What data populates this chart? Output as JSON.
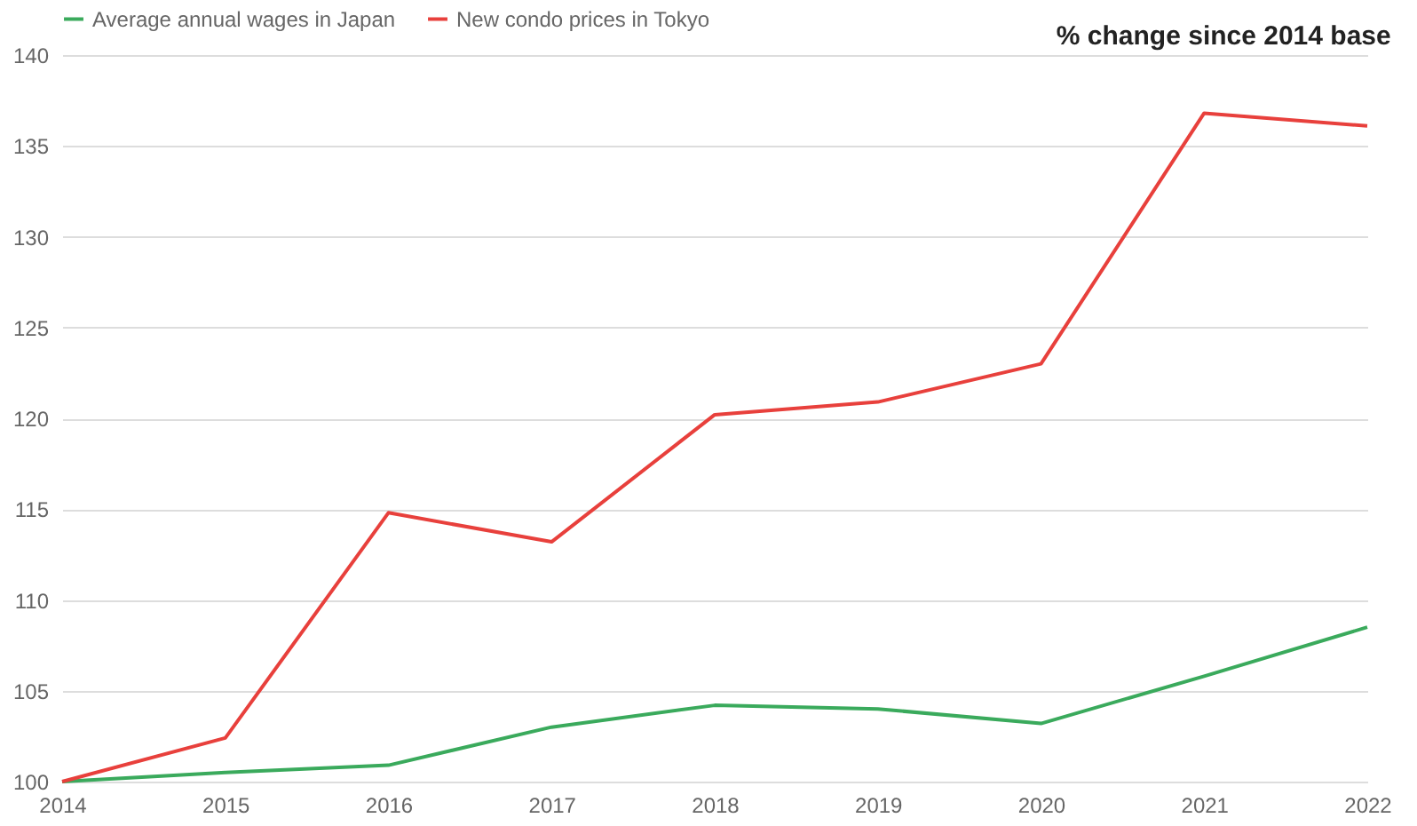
{
  "chart_data": {
    "type": "line",
    "title": "% change since 2014 base",
    "categories": [
      "2014",
      "2015",
      "2016",
      "2017",
      "2018",
      "2019",
      "2020",
      "2021",
      "2022"
    ],
    "series": [
      {
        "name": "Average annual wages in Japan",
        "color": "#3aaa5c",
        "values": [
          100,
          100.5,
          100.9,
          103.0,
          104.2,
          104.0,
          103.2,
          105.8,
          108.5
        ]
      },
      {
        "name": "New condo prices in Tokyo",
        "color": "#e8403c",
        "values": [
          100,
          102.4,
          114.8,
          113.2,
          120.2,
          120.9,
          123.0,
          136.8,
          136.1
        ]
      }
    ],
    "ylim": [
      100,
      140
    ],
    "yticks": [
      100,
      105,
      110,
      115,
      120,
      125,
      130,
      135,
      140
    ],
    "grid": "y",
    "legend": "top left",
    "marker": "none",
    "line_style": "solid"
  }
}
